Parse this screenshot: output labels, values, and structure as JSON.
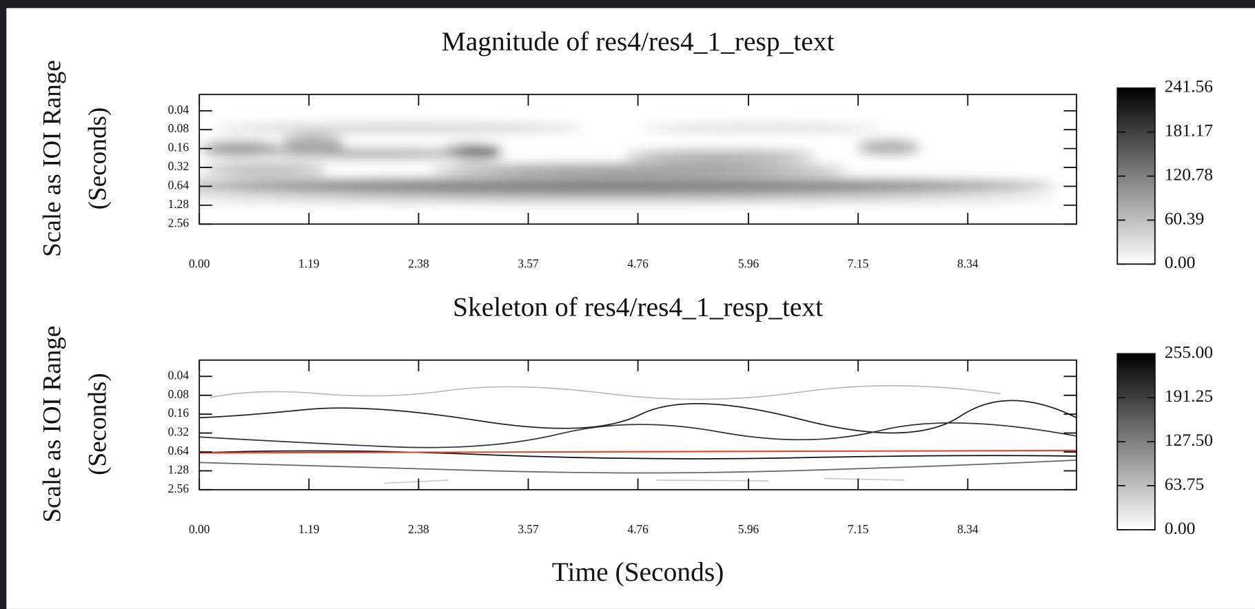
{
  "chart_data": [
    {
      "type": "heatmap",
      "title": "Magnitude of res4/res4_1_resp_text",
      "ylabel": [
        "Scale as IOI Range",
        "(Seconds)"
      ],
      "xlim": [
        0,
        9.52
      ],
      "xticks": [
        {
          "value": 0,
          "label": "0.00"
        },
        1.19,
        2.38,
        3.57,
        4.76,
        5.96,
        7.15,
        8.34
      ],
      "ylim": [
        2.56,
        0.022
      ],
      "ylog": true,
      "yticks": [
        0.04,
        0.08,
        0.16,
        0.32,
        0.64,
        1.28,
        2.56
      ],
      "colormap": [
        "#ffffff",
        "#000000"
      ],
      "clim": [
        0,
        241.56
      ],
      "cticks": [
        {
          "value": 0,
          "label": "0.00"
        },
        60.39,
        120.78,
        181.17,
        241.56
      ]
    },
    {
      "type": "heatmap",
      "title": "Skeleton of res4/res4_1_resp_text",
      "ylabel": [
        "Scale as IOI Range",
        "(Seconds)"
      ],
      "xlabel": "Time (Seconds)",
      "xlim": [
        0,
        9.52
      ],
      "xticks": [
        {
          "value": 0,
          "label": "0.00"
        },
        1.19,
        2.38,
        3.57,
        4.76,
        5.96,
        7.15,
        8.34
      ],
      "ylim": [
        2.56,
        0.022
      ],
      "ylog": true,
      "yticks": [
        0.04,
        0.08,
        0.16,
        0.32,
        0.64,
        1.28,
        2.56
      ],
      "colormap": [
        "#ffffff",
        "#000000"
      ],
      "clim": [
        0,
        255
      ],
      "cticks": [
        {
          "value": 0,
          "label": "0.00"
        },
        63.75,
        {
          "value": 127.5,
          "label": "127.50"
        },
        191.25,
        {
          "value": 255,
          "label": "255.00"
        }
      ]
    }
  ]
}
